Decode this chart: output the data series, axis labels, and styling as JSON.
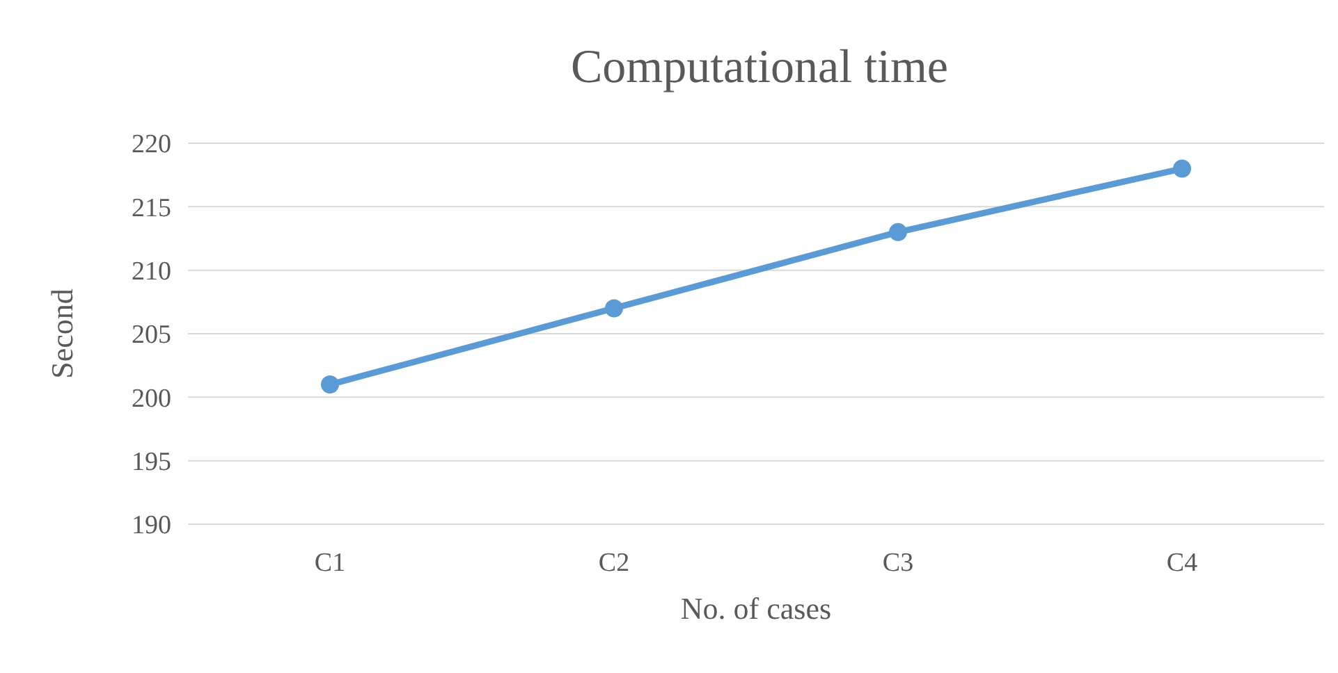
{
  "chart_data": {
    "type": "line",
    "title": "Computational time",
    "xlabel": "No. of cases",
    "ylabel": "Second",
    "categories": [
      "C1",
      "C2",
      "C3",
      "C4"
    ],
    "series": [
      {
        "color": "#5b9bd5",
        "values": [
          201,
          207,
          213,
          218
        ]
      }
    ],
    "ylim": [
      190,
      220
    ],
    "yticks": [
      190,
      195,
      200,
      205,
      210,
      215,
      220
    ],
    "grid": "y",
    "marker": "circle",
    "line_style": "solid"
  }
}
